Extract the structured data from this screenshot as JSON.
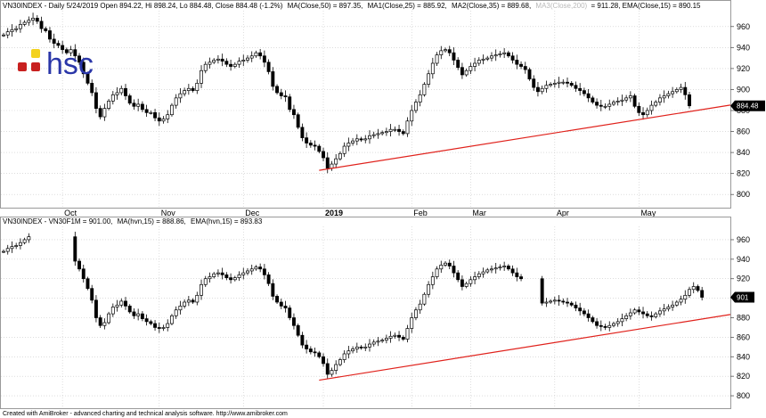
{
  "colors": {
    "grid": "#c8c8c8",
    "border": "#9a9a9a",
    "candle": "#000000",
    "trend": "#e0221c",
    "logo_text": "#2a36a8",
    "logo_yellow": "#f3d21f",
    "logo_red": "#c8201f",
    "badge": "#000000"
  },
  "footer": "Created with AmiBroker - advanced charting and technical analysis software. http://www.amibroker.com",
  "logo": {
    "text": "hsc"
  },
  "x_axis": {
    "labels": [
      {
        "text": "Oct",
        "i": 14,
        "bold": false
      },
      {
        "text": "Nov",
        "i": 37,
        "bold": false
      },
      {
        "text": "Dec",
        "i": 57,
        "bold": false
      },
      {
        "text": "2019",
        "i": 76,
        "bold": true
      },
      {
        "text": "Feb",
        "i": 97,
        "bold": false
      },
      {
        "text": "Mar",
        "i": 111,
        "bold": false
      },
      {
        "text": "Apr",
        "i": 131,
        "bold": false
      },
      {
        "text": "May",
        "i": 151,
        "bold": false
      }
    ]
  },
  "chart_data": [
    {
      "type": "candlestick",
      "title": "VN30INDEX - Daily 5/24/2019 Open 894.22, Hi 898.24, Lo 884.48, Close 884.48 (-1.2%)",
      "indicators": [
        {
          "label": "MA(Close,50) = 897.35,",
          "dim": false
        },
        {
          "label": "MA1(Close,25) = 885.92,",
          "dim": false
        },
        {
          "label": "MA2(Close,35) = 889.68,",
          "dim": false
        },
        {
          "label": "MA3(Close,200)",
          "dim": true
        },
        {
          "label": "= 911.28, EMA(Close,15) = 890.15",
          "dim": false
        }
      ],
      "ylim": [
        790,
        970
      ],
      "yticks": [
        800,
        820,
        840,
        860,
        880,
        900,
        920,
        940,
        960
      ],
      "last_value": "884.48",
      "closes": [
        952,
        955,
        957,
        958,
        962,
        964,
        966,
        968,
        965,
        958,
        956,
        948,
        944,
        942,
        938,
        935,
        938,
        932,
        926,
        915,
        906,
        897,
        882,
        874,
        882,
        889,
        895,
        897,
        901,
        894,
        887,
        884,
        886,
        881,
        878,
        878,
        873,
        870,
        872,
        876,
        885,
        892,
        896,
        899,
        901,
        899,
        906,
        918,
        924,
        926,
        928,
        929,
        927,
        924,
        922,
        924,
        927,
        928,
        930,
        932,
        935,
        932,
        926,
        917,
        903,
        897,
        894,
        893,
        881,
        876,
        864,
        854,
        849,
        847,
        846,
        841,
        835,
        825,
        829,
        834,
        839,
        846,
        849,
        851,
        853,
        852,
        853,
        856,
        857,
        858,
        859,
        860,
        862,
        862,
        860,
        858,
        870,
        880,
        888,
        895,
        905,
        915,
        925,
        933,
        937,
        938,
        935,
        928,
        921,
        914,
        918,
        922,
        925,
        928,
        929,
        930,
        932,
        933,
        934,
        935,
        932,
        928,
        924,
        922,
        919,
        910,
        902,
        898,
        901,
        904,
        905,
        906,
        907,
        907,
        906,
        904,
        901,
        899,
        896,
        892,
        888,
        885,
        884,
        884,
        886,
        888,
        889,
        890,
        892,
        894,
        884,
        878,
        876,
        880,
        885,
        888,
        892,
        894,
        896,
        898,
        900,
        902,
        895,
        884.48
      ],
      "trendline": {
        "from": {
          "i": 75,
          "v": 823
        },
        "to": {
          "i": 163,
          "v": 879
        }
      }
    },
    {
      "type": "candlestick",
      "title": "VN30INDEX - VN30F1M = 901.00,",
      "indicators": [
        {
          "label": "MA(hvn,15) = 888.86,",
          "dim": false
        },
        {
          "label": "EMA(hvn,15) = 893.83",
          "dim": false
        }
      ],
      "ylim": [
        790,
        970
      ],
      "yticks": [
        800,
        820,
        840,
        860,
        880,
        900,
        920,
        940,
        960
      ],
      "last_value": "901",
      "closes": [
        948,
        951,
        953,
        954,
        957,
        960,
        963,
        null,
        null,
        null,
        null,
        null,
        null,
        null,
        null,
        null,
        null,
        938,
        930,
        920,
        910,
        898,
        880,
        872,
        875,
        884,
        891,
        893,
        897,
        892,
        886,
        882,
        884,
        879,
        876,
        874,
        870,
        869,
        870,
        874,
        882,
        888,
        892,
        896,
        898,
        896,
        903,
        914,
        920,
        922,
        925,
        926,
        924,
        921,
        919,
        921,
        924,
        926,
        928,
        930,
        932,
        930,
        924,
        915,
        902,
        896,
        892,
        890,
        880,
        872,
        862,
        852,
        848,
        845,
        844,
        840,
        833,
        822,
        826,
        832,
        837,
        843,
        846,
        848,
        850,
        849,
        850,
        853,
        855,
        856,
        857,
        859,
        861,
        862,
        860,
        858,
        869,
        880,
        888,
        894,
        904,
        914,
        922,
        930,
        934,
        936,
        933,
        926,
        919,
        912,
        915,
        919,
        922,
        925,
        927,
        929,
        930,
        931,
        932,
        933,
        930,
        926,
        922,
        920,
        null,
        null,
        null,
        null,
        895,
        896,
        897,
        898,
        897,
        896,
        895,
        893,
        890,
        887,
        884,
        880,
        876,
        872,
        871,
        870,
        872,
        874,
        876,
        879,
        882,
        885,
        888,
        886,
        884,
        882,
        881,
        884,
        887,
        889,
        891,
        893,
        896,
        899,
        903,
        909,
        912,
        908,
        901
      ],
      "trendline": {
        "from": {
          "i": 75,
          "v": 816
        },
        "to": {
          "i": 165,
          "v": 878
        }
      }
    }
  ]
}
